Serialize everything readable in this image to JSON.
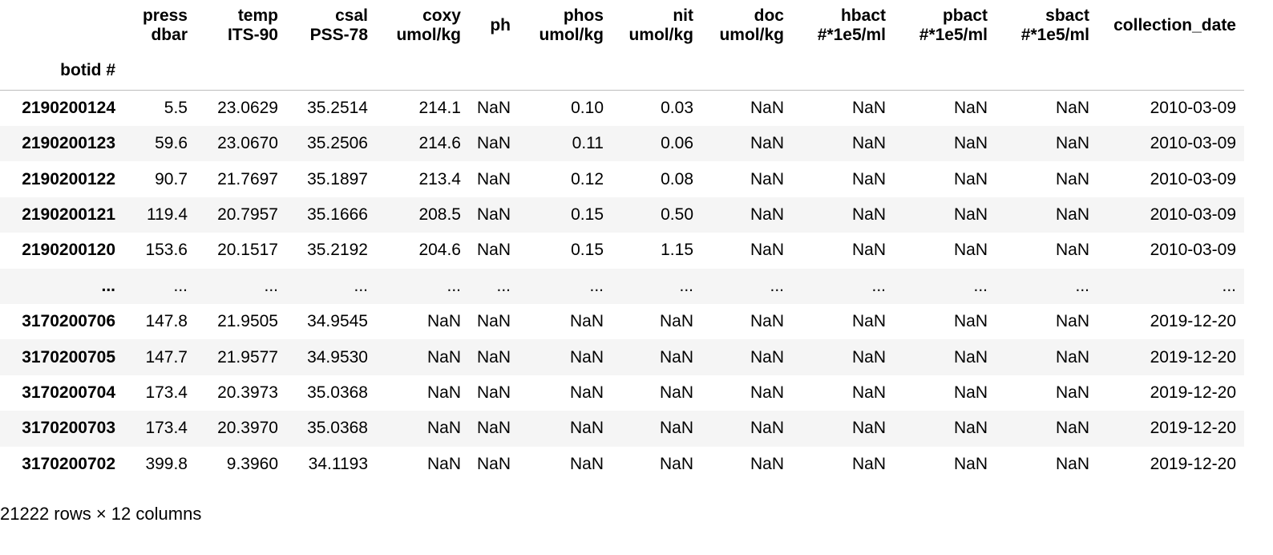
{
  "table": {
    "index_name": "botid #",
    "columns": [
      {
        "key": "press",
        "name": "press",
        "unit": "dbar"
      },
      {
        "key": "temp",
        "name": "temp",
        "unit": "ITS-90"
      },
      {
        "key": "csal",
        "name": "csal",
        "unit": "PSS-78"
      },
      {
        "key": "coxy",
        "name": "coxy",
        "unit": "umol/kg"
      },
      {
        "key": "ph",
        "name": "ph",
        "unit": ""
      },
      {
        "key": "phos",
        "name": "phos",
        "unit": "umol/kg"
      },
      {
        "key": "nit",
        "name": "nit",
        "unit": "umol/kg"
      },
      {
        "key": "doc",
        "name": "doc",
        "unit": "umol/kg"
      },
      {
        "key": "hbact",
        "name": "hbact",
        "unit": "#*1e5/ml"
      },
      {
        "key": "pbact",
        "name": "pbact",
        "unit": "#*1e5/ml"
      },
      {
        "key": "sbact",
        "name": "sbact",
        "unit": "#*1e5/ml"
      },
      {
        "key": "date",
        "name": "collection_date",
        "unit": ""
      }
    ],
    "rows": [
      {
        "index": "2190200124",
        "cells": [
          "5.5",
          "23.0629",
          "35.2514",
          "214.1",
          "NaN",
          "0.10",
          "0.03",
          "NaN",
          "NaN",
          "NaN",
          "NaN",
          "2010-03-09"
        ]
      },
      {
        "index": "2190200123",
        "cells": [
          "59.6",
          "23.0670",
          "35.2506",
          "214.6",
          "NaN",
          "0.11",
          "0.06",
          "NaN",
          "NaN",
          "NaN",
          "NaN",
          "2010-03-09"
        ]
      },
      {
        "index": "2190200122",
        "cells": [
          "90.7",
          "21.7697",
          "35.1897",
          "213.4",
          "NaN",
          "0.12",
          "0.08",
          "NaN",
          "NaN",
          "NaN",
          "NaN",
          "2010-03-09"
        ]
      },
      {
        "index": "2190200121",
        "cells": [
          "119.4",
          "20.7957",
          "35.1666",
          "208.5",
          "NaN",
          "0.15",
          "0.50",
          "NaN",
          "NaN",
          "NaN",
          "NaN",
          "2010-03-09"
        ]
      },
      {
        "index": "2190200120",
        "cells": [
          "153.6",
          "20.1517",
          "35.2192",
          "204.6",
          "NaN",
          "0.15",
          "1.15",
          "NaN",
          "NaN",
          "NaN",
          "NaN",
          "2010-03-09"
        ]
      },
      {
        "index": "...",
        "cells": [
          "...",
          "...",
          "...",
          "...",
          "...",
          "...",
          "...",
          "...",
          "...",
          "...",
          "...",
          "..."
        ]
      },
      {
        "index": "3170200706",
        "cells": [
          "147.8",
          "21.9505",
          "34.9545",
          "NaN",
          "NaN",
          "NaN",
          "NaN",
          "NaN",
          "NaN",
          "NaN",
          "NaN",
          "2019-12-20"
        ]
      },
      {
        "index": "3170200705",
        "cells": [
          "147.7",
          "21.9577",
          "34.9530",
          "NaN",
          "NaN",
          "NaN",
          "NaN",
          "NaN",
          "NaN",
          "NaN",
          "NaN",
          "2019-12-20"
        ]
      },
      {
        "index": "3170200704",
        "cells": [
          "173.4",
          "20.3973",
          "35.0368",
          "NaN",
          "NaN",
          "NaN",
          "NaN",
          "NaN",
          "NaN",
          "NaN",
          "NaN",
          "2019-12-20"
        ]
      },
      {
        "index": "3170200703",
        "cells": [
          "173.4",
          "20.3970",
          "35.0368",
          "NaN",
          "NaN",
          "NaN",
          "NaN",
          "NaN",
          "NaN",
          "NaN",
          "NaN",
          "2019-12-20"
        ]
      },
      {
        "index": "3170200702",
        "cells": [
          "399.8",
          "9.3960",
          "34.1193",
          "NaN",
          "NaN",
          "NaN",
          "NaN",
          "NaN",
          "NaN",
          "NaN",
          "NaN",
          "2019-12-20"
        ]
      }
    ],
    "footer": "21222 rows × 12 columns"
  },
  "colors": {
    "stripe": "#f5f5f5",
    "header_rule": "#bdbdbd",
    "text": "#000000"
  }
}
